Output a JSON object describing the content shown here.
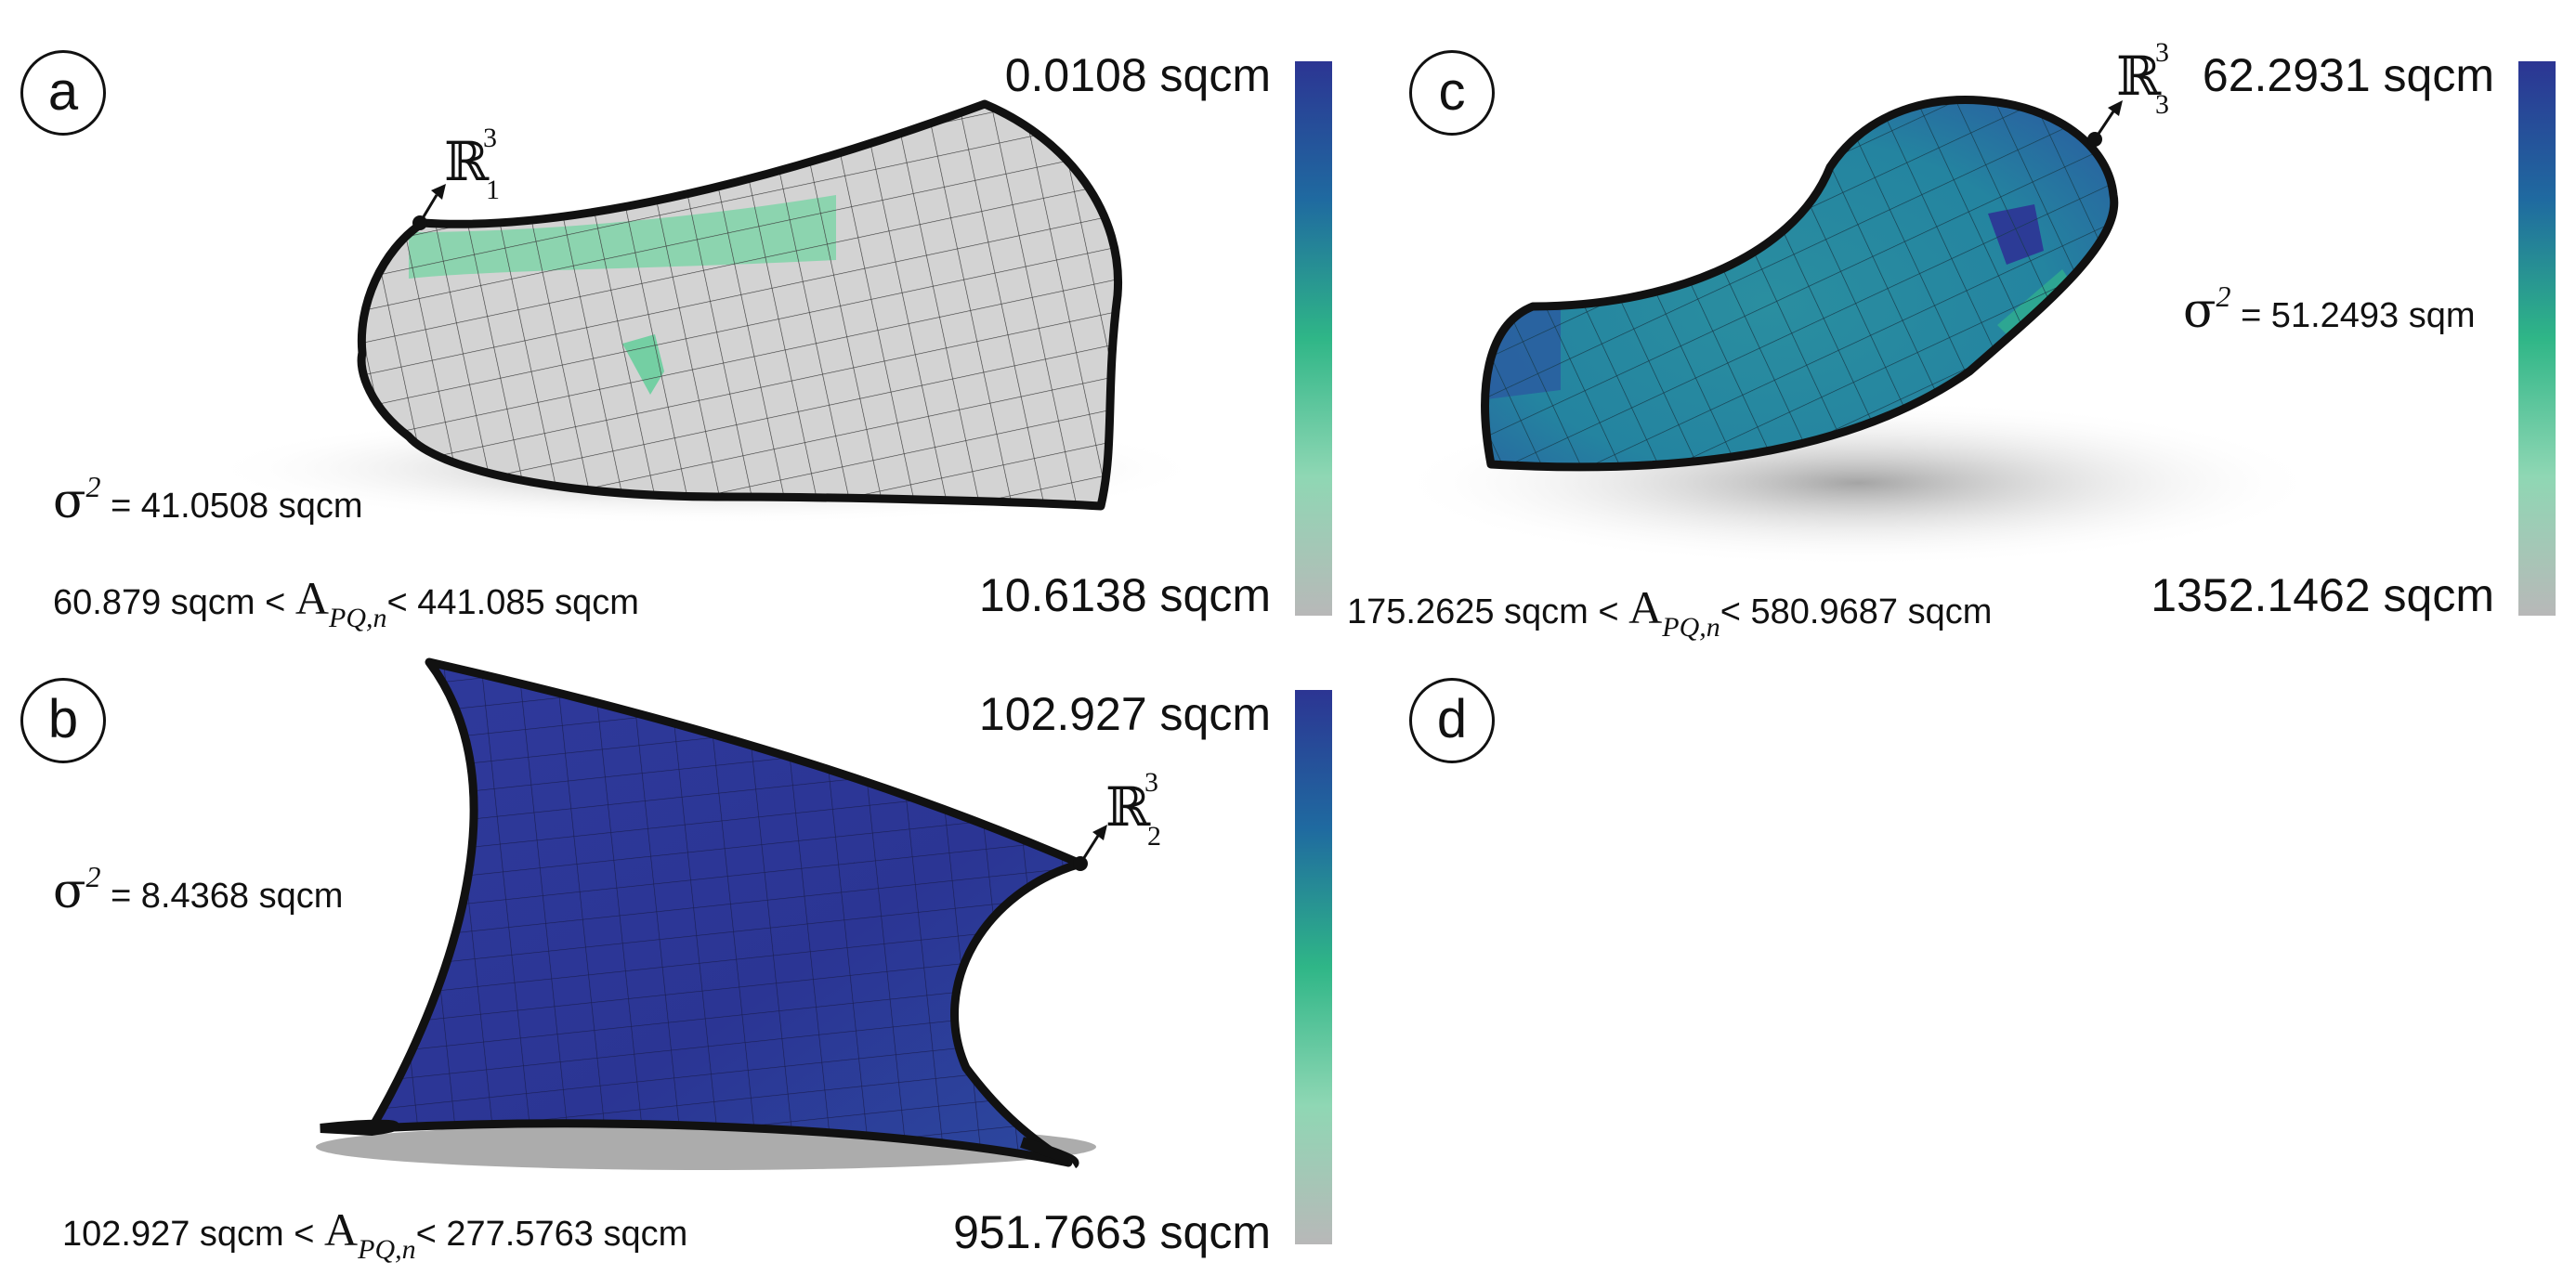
{
  "panels": {
    "a": {
      "letter": "a",
      "max_label": "0.0108 sqcm",
      "min_label": "10.6138 sqcm",
      "variance_symbol": "σ",
      "variance_exp": "2",
      "variance_value": "= 41.0508 sqcm",
      "range_low": "60.879 sqcm <",
      "range_high": "< 441.085 sqcm",
      "point_symbol": "ℝ",
      "point_sup": "3",
      "point_sub": "1"
    },
    "b": {
      "letter": "b",
      "max_label": "102.927 sqcm",
      "min_label": "951.7663 sqcm",
      "variance_symbol": "σ",
      "variance_exp": "2",
      "variance_value": "= 8.4368 sqcm",
      "range_low": "102.927 sqcm <",
      "range_high": "< 277.5763 sqcm",
      "point_symbol": "ℝ",
      "point_sup": "3",
      "point_sub": "2"
    },
    "c": {
      "letter": "c",
      "max_label": "62.2931 sqcm",
      "min_label": "1352.1462 sqcm",
      "variance_symbol": "σ",
      "variance_exp": "2",
      "variance_value": "= 51.2493 sqm",
      "range_low": "175.2625 sqcm <",
      "range_high": "< 580.9687 sqcm",
      "point_symbol": "ℝ",
      "point_sup": "3",
      "point_sub": "3"
    },
    "d": {
      "letter": "d"
    }
  },
  "area_symbol": "A",
  "area_subscript": "PQ,n",
  "colors": {
    "mesh_gray": "#d3d3d3",
    "mesh_green": "#7fd3a8",
    "mesh_blue": "#2a3a9a",
    "mesh_teal": "#2a86a0",
    "colorbar_top": "#2e3a96",
    "colorbar_mid": "#3cc08a",
    "colorbar_bottom": "#bdbdbd",
    "outline": "#111111"
  }
}
